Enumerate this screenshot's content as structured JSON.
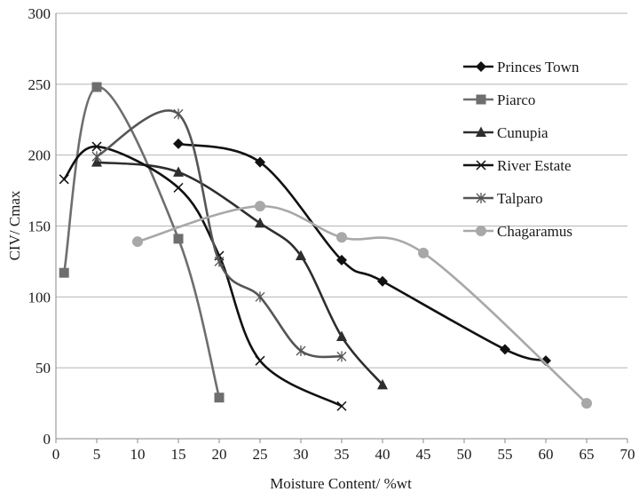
{
  "chart_data": {
    "type": "line",
    "title": "",
    "xlabel": "Moisture Content/ %wt",
    "ylabel": "CIV/ Cmax",
    "xlim": [
      0,
      70
    ],
    "ylim": [
      0,
      300
    ],
    "x_ticks": [
      "0",
      "5",
      "10",
      "15",
      "20",
      "25",
      "30",
      "35",
      "40",
      "45",
      "50",
      "55",
      "60",
      "65",
      "70"
    ],
    "y_ticks": [
      "0",
      "50",
      "100",
      "150",
      "200",
      "250",
      "300"
    ],
    "grid": "horizontal",
    "legend_position": "right",
    "series": [
      {
        "name": "Princes Town",
        "marker": "diamond",
        "color": "#111111",
        "points": [
          [
            15,
            208
          ],
          [
            25,
            195
          ],
          [
            35,
            126
          ],
          [
            40,
            111
          ],
          [
            55,
            63
          ],
          [
            60,
            55
          ]
        ]
      },
      {
        "name": "Piarco",
        "marker": "square",
        "color": "#6e6e6e",
        "points": [
          [
            1,
            117
          ],
          [
            5,
            248
          ],
          [
            15,
            141
          ],
          [
            20,
            29
          ]
        ]
      },
      {
        "name": "Cunupia",
        "marker": "triangle",
        "color": "#2e2e2e",
        "points": [
          [
            5,
            195
          ],
          [
            15,
            188
          ],
          [
            25,
            152
          ],
          [
            30,
            129
          ],
          [
            35,
            72
          ],
          [
            40,
            38
          ]
        ]
      },
      {
        "name": "River Estate",
        "marker": "x",
        "color": "#111111",
        "points": [
          [
            1,
            183
          ],
          [
            5,
            206
          ],
          [
            15,
            177
          ],
          [
            20,
            129
          ],
          [
            25,
            55
          ],
          [
            35,
            23
          ]
        ]
      },
      {
        "name": "Talparo",
        "marker": "star",
        "color": "#555555",
        "points": [
          [
            5,
            199
          ],
          [
            15,
            229
          ],
          [
            20,
            125
          ],
          [
            25,
            100
          ],
          [
            30,
            62
          ],
          [
            35,
            58
          ]
        ]
      },
      {
        "name": "Chagaramus",
        "marker": "circle",
        "color": "#a8a8a8",
        "points": [
          [
            10,
            139
          ],
          [
            25,
            164
          ],
          [
            35,
            142
          ],
          [
            45,
            131
          ],
          [
            65,
            25
          ]
        ]
      }
    ]
  }
}
